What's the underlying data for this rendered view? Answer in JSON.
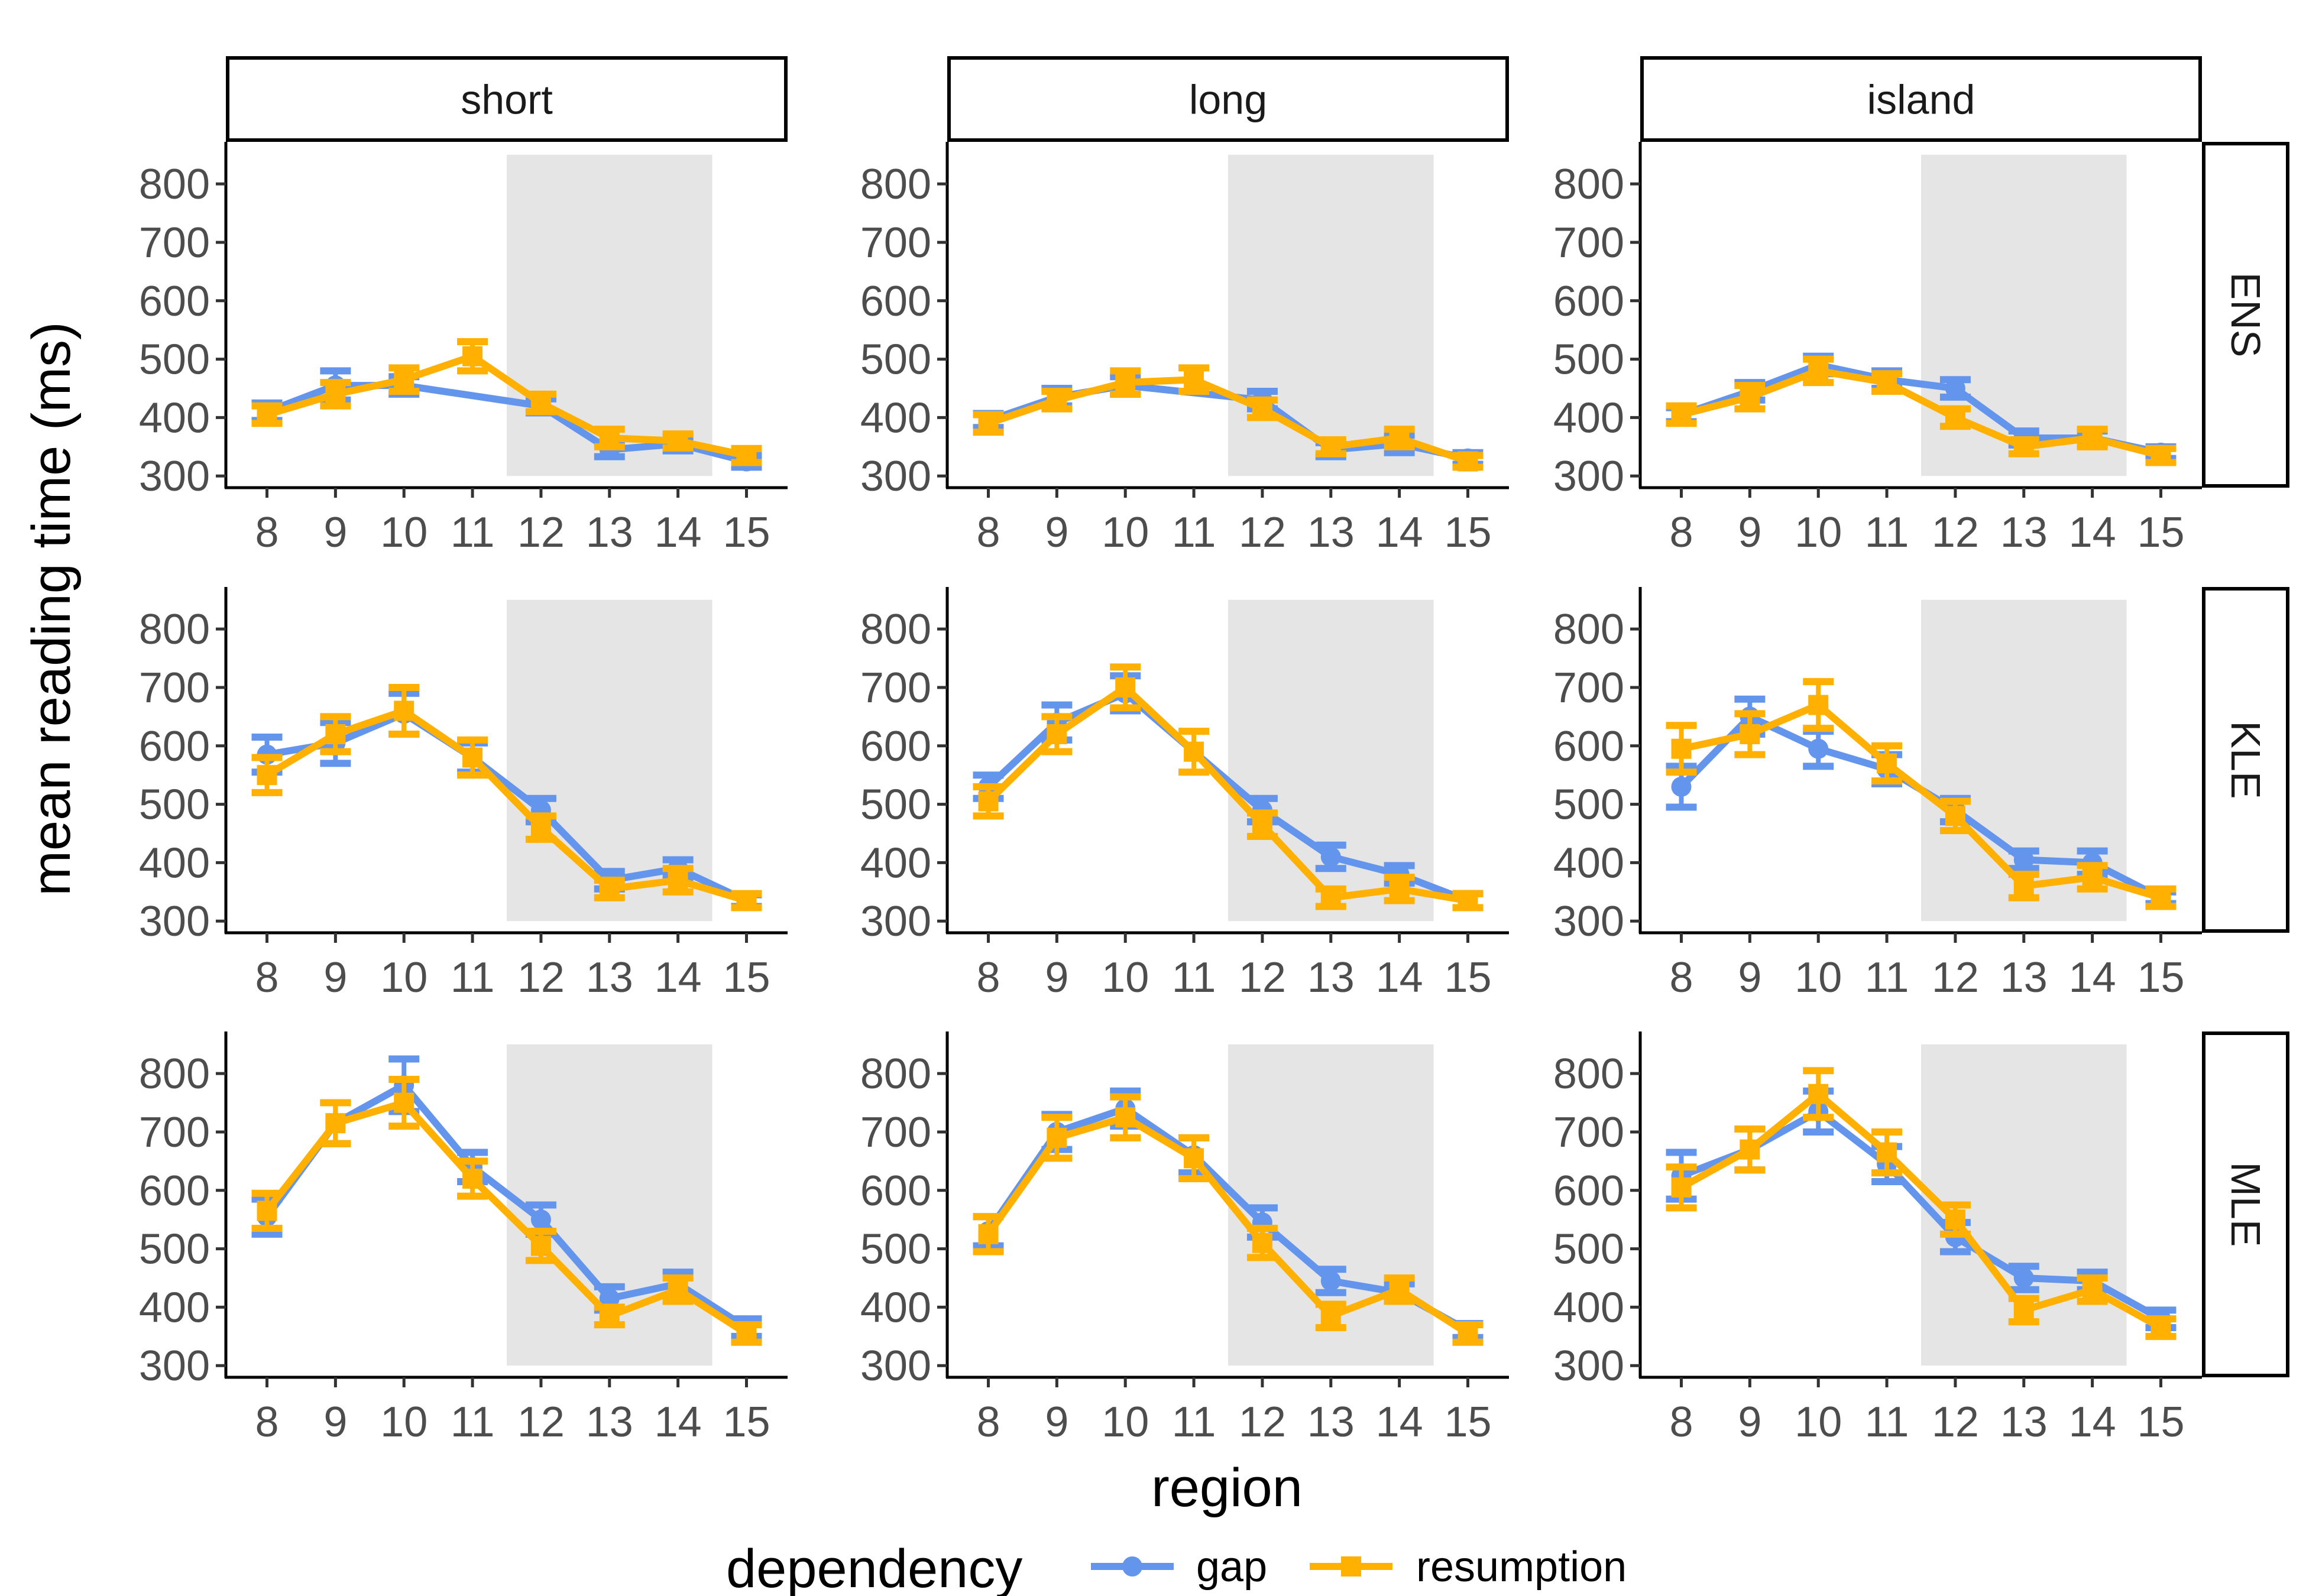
{
  "chart_data": {
    "type": "line",
    "layout": "facet grid (3 columns x 3 rows), line chart with error bars",
    "xlabel": "region",
    "ylabel": "mean reading time (ms)",
    "x": [
      8,
      9,
      10,
      11,
      12,
      13,
      14,
      15
    ],
    "x_ticks": [
      "8",
      "9",
      "10",
      "11",
      "12",
      "13",
      "14",
      "15"
    ],
    "ylim": [
      300,
      850
    ],
    "y_ticks": [
      300,
      400,
      500,
      600,
      700,
      800
    ],
    "y_tick_labels": [
      "300",
      "400",
      "500",
      "600",
      "700",
      "800"
    ],
    "highlight_region": [
      11.5,
      14.5
    ],
    "highlight_color": "#e5e5e5",
    "grid": false,
    "legend": {
      "title": "dependency",
      "position": "bottom",
      "entries": [
        {
          "name": "gap",
          "color": "#6495ED",
          "marker": "circle"
        },
        {
          "name": "resumption",
          "color": "#FFB000",
          "marker": "square"
        }
      ]
    },
    "columns": [
      "short",
      "long",
      "island"
    ],
    "rows": [
      "ENS",
      "KLE",
      "MLE"
    ],
    "panels": [
      {
        "col": "short",
        "row": "ENS",
        "series": [
          {
            "name": "gap",
            "values": [
              410,
              455,
              455,
              null,
              420,
              345,
              355,
              325
            ],
            "errors": [
              15,
              25,
              15,
              null,
              12,
              12,
              12,
              10
            ]
          },
          {
            "name": "resumption",
            "values": [
              405,
              440,
              465,
              505,
              425,
              365,
              360,
              335
            ],
            "errors": [
              15,
              20,
              20,
              25,
              15,
              15,
              12,
              12
            ]
          }
        ]
      },
      {
        "col": "long",
        "row": "ENS",
        "series": [
          {
            "name": "gap",
            "values": [
              395,
              435,
              455,
              null,
              430,
              345,
              355,
              330
            ],
            "errors": [
              12,
              15,
              15,
              null,
              15,
              12,
              15,
              10
            ]
          },
          {
            "name": "resumption",
            "values": [
              390,
              430,
              460,
              465,
              415,
              350,
              365,
              325
            ],
            "errors": [
              15,
              15,
              20,
              20,
              15,
              12,
              15,
              10
            ]
          }
        ]
      },
      {
        "col": "island",
        "row": "ENS",
        "series": [
          {
            "name": "gap",
            "values": [
              405,
              445,
              490,
              465,
              450,
              365,
              365,
              340
            ],
            "errors": [
              12,
              15,
              15,
              15,
              15,
              12,
              12,
              10
            ]
          },
          {
            "name": "resumption",
            "values": [
              405,
              435,
              480,
              460,
              400,
              350,
              365,
              335
            ],
            "errors": [
              15,
              20,
              20,
              15,
              15,
              12,
              15,
              12
            ]
          }
        ]
      },
      {
        "col": "short",
        "row": "KLE",
        "series": [
          {
            "name": "gap",
            "values": [
              585,
              605,
              655,
              580,
              490,
              370,
              390,
              335
            ],
            "errors": [
              30,
              35,
              35,
              25,
              20,
              15,
              15,
              10
            ]
          },
          {
            "name": "resumption",
            "values": [
              550,
              620,
              660,
              580,
              460,
              355,
              370,
              335
            ],
            "errors": [
              30,
              30,
              40,
              30,
              20,
              15,
              20,
              12
            ]
          }
        ]
      },
      {
        "col": "long",
        "row": "KLE",
        "series": [
          {
            "name": "gap",
            "values": [
              530,
              640,
              690,
              null,
              490,
              410,
              380,
              335
            ],
            "errors": [
              20,
              30,
              30,
              null,
              20,
              20,
              15,
              12
            ]
          },
          {
            "name": "resumption",
            "values": [
              505,
              620,
              700,
              590,
              465,
              340,
              355,
              335
            ],
            "errors": [
              25,
              30,
              35,
              35,
              20,
              15,
              20,
              12
            ]
          }
        ]
      },
      {
        "col": "island",
        "row": "KLE",
        "series": [
          {
            "name": "gap",
            "values": [
              530,
              650,
              595,
              560,
              490,
              405,
              400,
              340
            ],
            "errors": [
              35,
              30,
              30,
              25,
              20,
              15,
              20,
              10
            ]
          },
          {
            "name": "resumption",
            "values": [
              595,
              620,
              670,
              570,
              480,
              360,
              375,
              340
            ],
            "errors": [
              40,
              35,
              40,
              30,
              25,
              20,
              20,
              15
            ]
          }
        ]
      },
      {
        "col": "short",
        "row": "MLE",
        "series": [
          {
            "name": "gap",
            "values": [
              555,
              715,
              780,
              640,
              550,
              415,
              440,
              365
            ],
            "errors": [
              30,
              35,
              45,
              25,
              25,
              20,
              20,
              15
            ]
          },
          {
            "name": "resumption",
            "values": [
              565,
              715,
              750,
              620,
              505,
              385,
              430,
              355
            ],
            "errors": [
              30,
              35,
              40,
              30,
              25,
              15,
              20,
              15
            ]
          }
        ]
      },
      {
        "col": "long",
        "row": "MLE",
        "series": [
          {
            "name": "gap",
            "values": [
              530,
              700,
              740,
              660,
              545,
              445,
              425,
              360
            ],
            "errors": [
              25,
              30,
              30,
              30,
              25,
              20,
              15,
              12
            ]
          },
          {
            "name": "resumption",
            "values": [
              525,
              690,
              725,
              655,
              510,
              385,
              430,
              355
            ],
            "errors": [
              30,
              35,
              35,
              35,
              25,
              20,
              20,
              15
            ]
          }
        ]
      },
      {
        "col": "island",
        "row": "MLE",
        "series": [
          {
            "name": "gap",
            "values": [
              625,
              670,
              735,
              645,
              520,
              450,
              445,
              380
            ],
            "errors": [
              40,
              35,
              35,
              30,
              25,
              20,
              15,
              15
            ]
          },
          {
            "name": "resumption",
            "values": [
              605,
              670,
              765,
              665,
              550,
              395,
              430,
              365
            ],
            "errors": [
              35,
              35,
              40,
              35,
              25,
              20,
              20,
              15
            ]
          }
        ]
      }
    ]
  }
}
